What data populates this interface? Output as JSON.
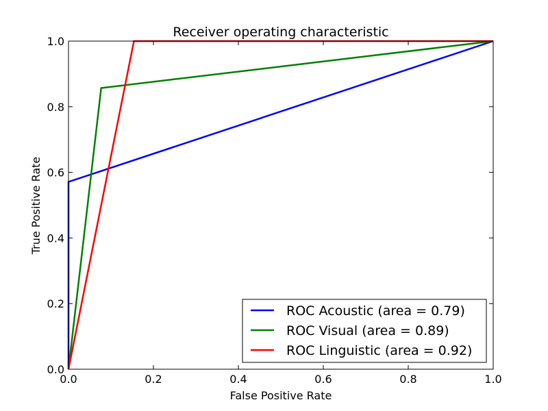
{
  "chart_data": {
    "type": "line",
    "title": "Receiver operating characteristic",
    "xlabel": "False Positive Rate",
    "ylabel": "True Positive Rate",
    "xlim": [
      0.0,
      1.0
    ],
    "ylim": [
      0.0,
      1.0
    ],
    "x_ticks": [
      "0.0",
      "0.2",
      "0.4",
      "0.6",
      "0.8",
      "1.0"
    ],
    "y_ticks": [
      "0.0",
      "0.2",
      "0.4",
      "0.6",
      "0.8",
      "1.0"
    ],
    "grid": false,
    "legend_position": "lower right",
    "series": [
      {
        "name": "ROC Acoustic (area = 0.79)",
        "color": "#0000ff",
        "x": [
          0.0,
          0.0,
          1.0
        ],
        "y": [
          0.0,
          0.571,
          1.0
        ]
      },
      {
        "name": "ROC Visual (area = 0.89)",
        "color": "#008000",
        "x": [
          0.0,
          0.077,
          1.0
        ],
        "y": [
          0.0,
          0.857,
          1.0
        ]
      },
      {
        "name": "ROC Linguistic (area = 0.92)",
        "color": "#ff0000",
        "x": [
          0.0,
          0.154,
          1.0
        ],
        "y": [
          0.0,
          1.0,
          1.0
        ]
      }
    ]
  }
}
